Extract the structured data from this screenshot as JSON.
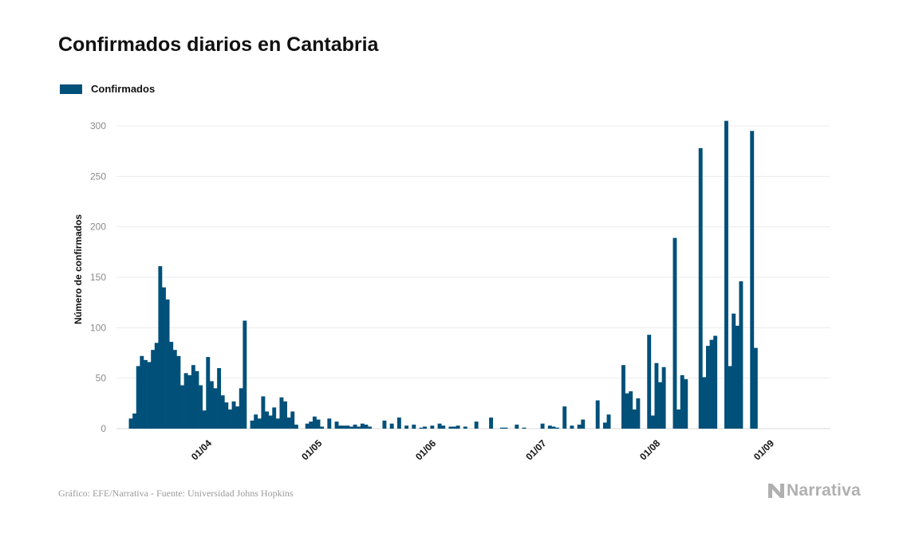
{
  "title": "Confirmados diarios en Cantabria",
  "footer": {
    "source": "Gráfico: EFE/Narrativa - Fuente: Universidad Johns Hopkins",
    "brand": "Narrativa"
  },
  "chart_data": {
    "type": "bar",
    "title": "Confirmados diarios en Cantabria",
    "xlabel": "",
    "ylabel": "Número de confirmados",
    "ylim": [
      0,
      320
    ],
    "yticks": [
      0,
      50,
      100,
      150,
      200,
      250,
      300
    ],
    "grid": true,
    "legend_position": "top-left",
    "color": "#00507a",
    "xticks": [
      {
        "label": "01/04",
        "date": "2020-04-01"
      },
      {
        "label": "01/05",
        "date": "2020-05-01"
      },
      {
        "label": "01/06",
        "date": "2020-06-01"
      },
      {
        "label": "01/07",
        "date": "2020-07-01"
      },
      {
        "label": "01/08",
        "date": "2020-08-01"
      },
      {
        "label": "01/09",
        "date": "2020-09-01"
      }
    ],
    "series": [
      {
        "name": "Confirmados",
        "points": [
          [
            "2020-03-12",
            10
          ],
          [
            "2020-03-13",
            15
          ],
          [
            "2020-03-14",
            62
          ],
          [
            "2020-03-15",
            72
          ],
          [
            "2020-03-16",
            68
          ],
          [
            "2020-03-17",
            66
          ],
          [
            "2020-03-18",
            78
          ],
          [
            "2020-03-19",
            85
          ],
          [
            "2020-03-20",
            161
          ],
          [
            "2020-03-21",
            140
          ],
          [
            "2020-03-22",
            128
          ],
          [
            "2020-03-23",
            86
          ],
          [
            "2020-03-24",
            78
          ],
          [
            "2020-03-25",
            72
          ],
          [
            "2020-03-26",
            43
          ],
          [
            "2020-03-27",
            55
          ],
          [
            "2020-03-28",
            53
          ],
          [
            "2020-03-29",
            63
          ],
          [
            "2020-03-30",
            57
          ],
          [
            "2020-03-31",
            43
          ],
          [
            "2020-04-01",
            18
          ],
          [
            "2020-04-02",
            71
          ],
          [
            "2020-04-03",
            47
          ],
          [
            "2020-04-04",
            40
          ],
          [
            "2020-04-05",
            60
          ],
          [
            "2020-04-06",
            33
          ],
          [
            "2020-04-07",
            26
          ],
          [
            "2020-04-08",
            19
          ],
          [
            "2020-04-09",
            27
          ],
          [
            "2020-04-10",
            22
          ],
          [
            "2020-04-11",
            40
          ],
          [
            "2020-04-12",
            107
          ],
          [
            "2020-04-14",
            8
          ],
          [
            "2020-04-15",
            14
          ],
          [
            "2020-04-16",
            10
          ],
          [
            "2020-04-17",
            32
          ],
          [
            "2020-04-18",
            17
          ],
          [
            "2020-04-19",
            13
          ],
          [
            "2020-04-20",
            21
          ],
          [
            "2020-04-21",
            10
          ],
          [
            "2020-04-22",
            31
          ],
          [
            "2020-04-23",
            27
          ],
          [
            "2020-04-24",
            11
          ],
          [
            "2020-04-25",
            17
          ],
          [
            "2020-04-26",
            4
          ],
          [
            "2020-04-29",
            5
          ],
          [
            "2020-04-30",
            7
          ],
          [
            "2020-05-01",
            12
          ],
          [
            "2020-05-02",
            9
          ],
          [
            "2020-05-03",
            2
          ],
          [
            "2020-05-05",
            10
          ],
          [
            "2020-05-07",
            7
          ],
          [
            "2020-05-08",
            3
          ],
          [
            "2020-05-09",
            3
          ],
          [
            "2020-05-10",
            3
          ],
          [
            "2020-05-11",
            2
          ],
          [
            "2020-05-12",
            4
          ],
          [
            "2020-05-13",
            2
          ],
          [
            "2020-05-14",
            5
          ],
          [
            "2020-05-15",
            4
          ],
          [
            "2020-05-16",
            2
          ],
          [
            "2020-05-20",
            8
          ],
          [
            "2020-05-22",
            5
          ],
          [
            "2020-05-24",
            11
          ],
          [
            "2020-05-26",
            3
          ],
          [
            "2020-05-28",
            4
          ],
          [
            "2020-05-30",
            1
          ],
          [
            "2020-05-31",
            2
          ],
          [
            "2020-06-02",
            3
          ],
          [
            "2020-06-04",
            5
          ],
          [
            "2020-06-05",
            3
          ],
          [
            "2020-06-07",
            2
          ],
          [
            "2020-06-08",
            2
          ],
          [
            "2020-06-09",
            3
          ],
          [
            "2020-06-11",
            2
          ],
          [
            "2020-06-14",
            7
          ],
          [
            "2020-06-18",
            11
          ],
          [
            "2020-06-21",
            1
          ],
          [
            "2020-06-22",
            1
          ],
          [
            "2020-06-25",
            4
          ],
          [
            "2020-06-27",
            1
          ],
          [
            "2020-07-02",
            5
          ],
          [
            "2020-07-04",
            3
          ],
          [
            "2020-07-05",
            2
          ],
          [
            "2020-07-06",
            1
          ],
          [
            "2020-07-08",
            22
          ],
          [
            "2020-07-10",
            3
          ],
          [
            "2020-07-12",
            4
          ],
          [
            "2020-07-13",
            9
          ],
          [
            "2020-07-17",
            28
          ],
          [
            "2020-07-19",
            6
          ],
          [
            "2020-07-20",
            14
          ],
          [
            "2020-07-24",
            63
          ],
          [
            "2020-07-25",
            35
          ],
          [
            "2020-07-26",
            37
          ],
          [
            "2020-07-27",
            19
          ],
          [
            "2020-07-28",
            30
          ],
          [
            "2020-07-31",
            93
          ],
          [
            "2020-08-01",
            13
          ],
          [
            "2020-08-02",
            65
          ],
          [
            "2020-08-03",
            46
          ],
          [
            "2020-08-04",
            61
          ],
          [
            "2020-08-07",
            189
          ],
          [
            "2020-08-08",
            19
          ],
          [
            "2020-08-09",
            53
          ],
          [
            "2020-08-10",
            49
          ],
          [
            "2020-08-14",
            278
          ],
          [
            "2020-08-15",
            51
          ],
          [
            "2020-08-16",
            82
          ],
          [
            "2020-08-17",
            88
          ],
          [
            "2020-08-18",
            92
          ],
          [
            "2020-08-21",
            305
          ],
          [
            "2020-08-22",
            62
          ],
          [
            "2020-08-23",
            114
          ],
          [
            "2020-08-24",
            102
          ],
          [
            "2020-08-25",
            146
          ],
          [
            "2020-08-28",
            295
          ],
          [
            "2020-08-29",
            80
          ]
        ]
      }
    ]
  }
}
